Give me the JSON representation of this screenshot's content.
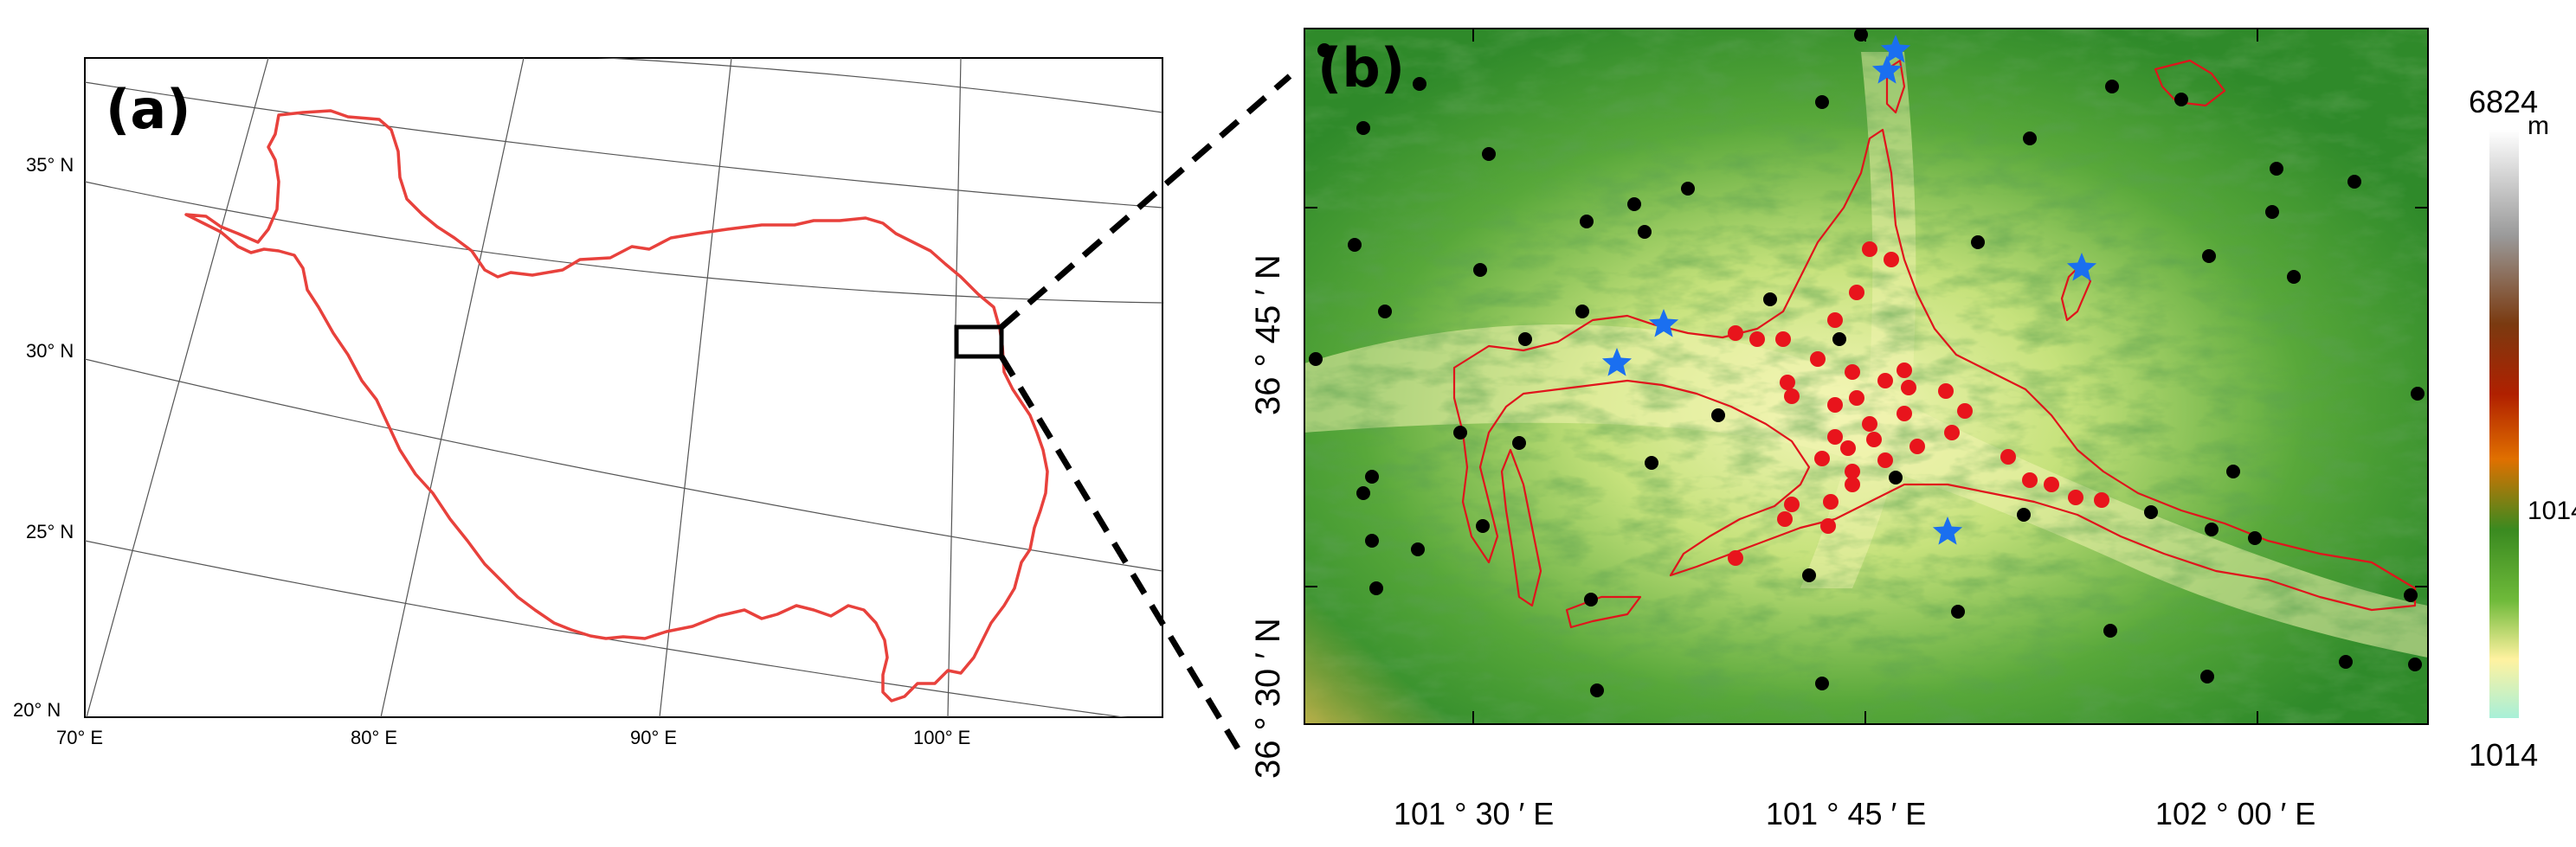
{
  "panel_a": {
    "label": "(a)",
    "lat_labels": [
      "35° N",
      "30° N",
      "25° N",
      "20° N"
    ],
    "lon_labels": [
      "70° E",
      "80° E",
      "90° E",
      "100° E"
    ],
    "boundary_color": "#e8413c"
  },
  "panel_b": {
    "label": "(b)",
    "lat_labels": [
      "36 ° 45 ′ N",
      "36 ° 30 ′ N"
    ],
    "lon_labels": [
      "101 ° 30 ′ E",
      "101 ° 45 ′ E",
      "102 ° 00 ′ E"
    ],
    "colorbar": {
      "max_label": "6824",
      "unit": "m",
      "mid_label": "1014",
      "min_label": "1014",
      "colors": [
        "#ffffff",
        "#9a9a9a",
        "#7a3a10",
        "#b02000",
        "#e07000",
        "#3a8a20",
        "#6fba3a",
        "#fff2a0",
        "#a8f0d8"
      ]
    },
    "markers": {
      "black_color": "#000000",
      "red_color": "#e8141c",
      "star_color": "#1a6ff0"
    }
  }
}
